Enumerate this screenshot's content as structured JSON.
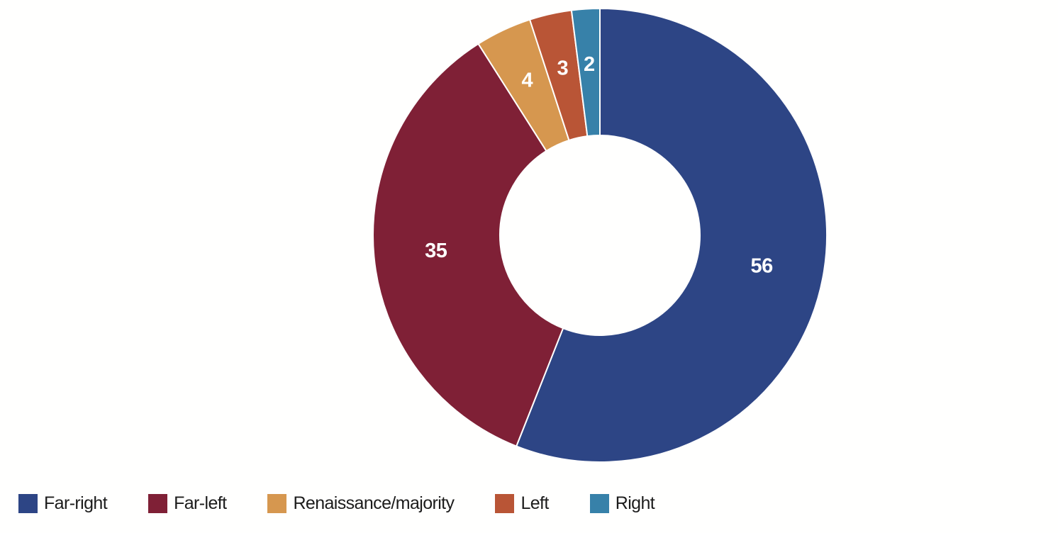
{
  "chart_data": {
    "type": "pie",
    "variant": "donut",
    "categories": [
      "Far-right",
      "Far-left",
      "Renaissance/majority",
      "Left",
      "Right"
    ],
    "values": [
      56,
      35,
      4,
      3,
      2
    ],
    "colors": [
      "#2d4585",
      "#7f2036",
      "#d6974f",
      "#b95536",
      "#3781a9"
    ],
    "data_labels": [
      "56",
      "35",
      "4",
      "3",
      "2"
    ],
    "data_label_color": "#ffffff",
    "segment_border_color": "#fffffe",
    "background_color": "#fffffe",
    "legend_position": "bottom",
    "legend_text_color": "#1c1c1c",
    "start_angle_deg": 0,
    "direction": "clockwise",
    "cutout_ratio": 0.44,
    "title": "",
    "xlabel": "",
    "ylabel": ""
  }
}
